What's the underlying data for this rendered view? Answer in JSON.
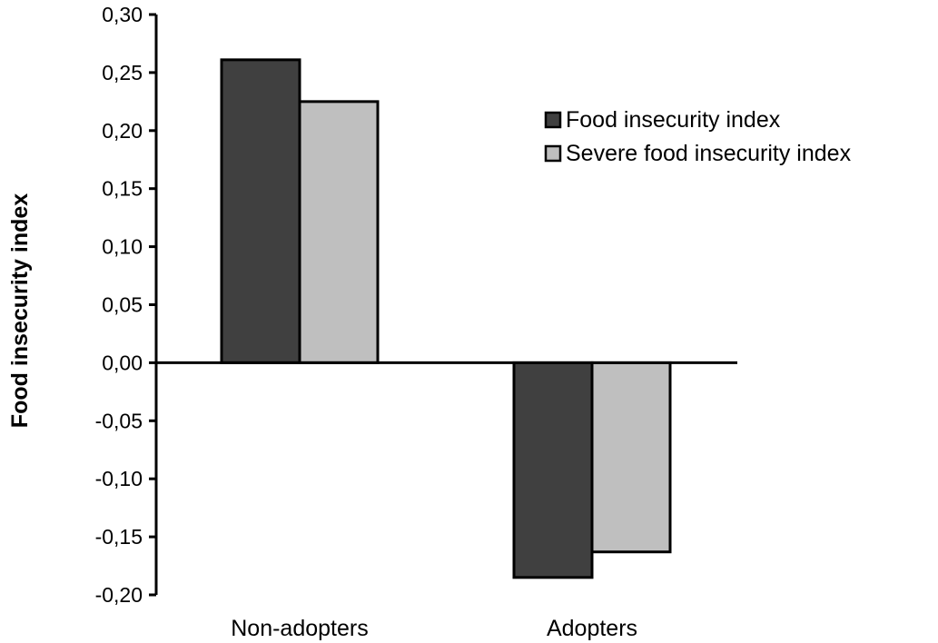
{
  "chart_data": {
    "type": "bar",
    "title": "",
    "xlabel": "",
    "ylabel": "Food insecurity index",
    "categories": [
      "Non-adopters",
      "Adopters"
    ],
    "series": [
      {
        "name": "Food insecurity index",
        "values": [
          0.261,
          -0.185
        ],
        "color": "#404040"
      },
      {
        "name": "Severe food insecurity index",
        "values": [
          0.225,
          -0.163
        ],
        "color": "#bfbfbf"
      }
    ],
    "ylim": [
      -0.2,
      0.3
    ],
    "yticks": [
      0.3,
      0.25,
      0.2,
      0.15,
      0.1,
      0.05,
      0.0,
      -0.05,
      -0.1,
      -0.15,
      -0.2
    ],
    "ytick_labels": [
      "0,30",
      "0,25",
      "0,20",
      "0,15",
      "0,10",
      "0,05",
      "0,00",
      "-0,05",
      "-0,10",
      "-0,15",
      "-0,20"
    ],
    "grid": false,
    "legend_position": "top-right"
  }
}
